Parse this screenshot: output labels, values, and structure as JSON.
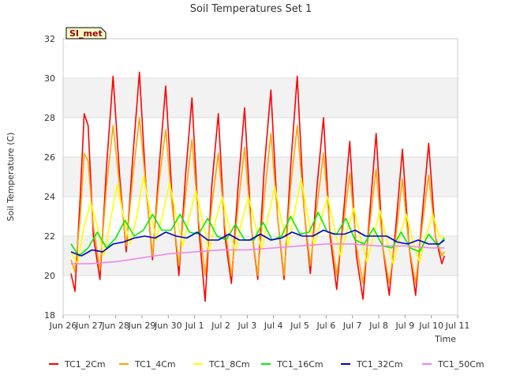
{
  "chart_data": {
    "type": "line",
    "title": "Soil Temperatures Set 1",
    "xlabel": "Time",
    "ylabel": "Soil Temperature (C)",
    "site_label": "SI_met",
    "xlim": [
      0,
      15
    ],
    "ylim": [
      18,
      32
    ],
    "y_ticks": [
      18,
      20,
      22,
      24,
      26,
      28,
      30,
      32
    ],
    "x_ticks": [
      {
        "x": 0,
        "label": "Jun 26"
      },
      {
        "x": 1,
        "label": "Jun 27"
      },
      {
        "x": 2,
        "label": "Jun 28"
      },
      {
        "x": 3,
        "label": "Jun 29"
      },
      {
        "x": 4,
        "label": "Jun 30"
      },
      {
        "x": 5,
        "label": "Jul 1"
      },
      {
        "x": 6,
        "label": "Jul 2"
      },
      {
        "x": 7,
        "label": "Jul 3"
      },
      {
        "x": 8,
        "label": "Jul 4"
      },
      {
        "x": 9,
        "label": "Jul 5"
      },
      {
        "x": 10,
        "label": "Jul 6"
      },
      {
        "x": 11,
        "label": "Jul 7"
      },
      {
        "x": 12,
        "label": "Jul 8"
      },
      {
        "x": 13,
        "label": "Jul 9"
      },
      {
        "x": 14,
        "label": "Jul 10"
      },
      {
        "x": 15,
        "label": "Jul 11"
      }
    ],
    "grid": true,
    "shaded_bands": [
      [
        20,
        22
      ],
      [
        24,
        26
      ],
      [
        28,
        30
      ]
    ],
    "legend_position": "bottom",
    "series": [
      {
        "name": "TC1_2Cm",
        "color": "#ff0000",
        "x": [
          0.3,
          0.45,
          0.65,
          0.8,
          0.95,
          1.15,
          1.4,
          1.65,
          1.9,
          2.15,
          2.4,
          2.65,
          2.9,
          3.15,
          3.4,
          3.65,
          3.9,
          4.15,
          4.4,
          4.65,
          4.9,
          5.15,
          5.4,
          5.65,
          5.9,
          6.15,
          6.4,
          6.65,
          6.9,
          7.15,
          7.4,
          7.65,
          7.9,
          8.15,
          8.4,
          8.65,
          8.9,
          9.15,
          9.4,
          9.65,
          9.9,
          10.15,
          10.4,
          10.65,
          10.9,
          11.15,
          11.4,
          11.65,
          11.9,
          12.15,
          12.4,
          12.65,
          12.9,
          13.15,
          13.4,
          13.65,
          13.9,
          14.15,
          14.4,
          14.5
        ],
        "y": [
          20.1,
          19.2,
          24.0,
          28.2,
          27.6,
          22.0,
          19.8,
          25.5,
          30.1,
          25.0,
          21.2,
          26.0,
          30.3,
          24.5,
          20.8,
          25.5,
          29.6,
          23.8,
          20.0,
          25.0,
          29.0,
          22.5,
          18.7,
          24.5,
          28.2,
          22.0,
          19.6,
          24.5,
          28.5,
          22.5,
          19.8,
          25.5,
          29.4,
          23.0,
          19.8,
          25.5,
          30.1,
          23.5,
          20.1,
          24.5,
          28.0,
          22.0,
          19.3,
          23.0,
          26.8,
          21.0,
          18.8,
          23.0,
          27.2,
          21.5,
          19.0,
          22.5,
          26.4,
          21.5,
          19.0,
          23.0,
          26.7,
          22.0,
          20.6,
          21.0
        ]
      },
      {
        "name": "TC1_4Cm",
        "color": "#ffa500",
        "x": [
          0.3,
          0.45,
          0.65,
          0.8,
          0.95,
          1.15,
          1.4,
          1.65,
          1.9,
          2.15,
          2.4,
          2.65,
          2.9,
          3.15,
          3.4,
          3.65,
          3.9,
          4.15,
          4.4,
          4.65,
          4.9,
          5.15,
          5.4,
          5.65,
          5.9,
          6.15,
          6.4,
          6.65,
          6.9,
          7.15,
          7.4,
          7.65,
          7.9,
          8.15,
          8.4,
          8.65,
          8.9,
          9.15,
          9.4,
          9.65,
          9.9,
          10.15,
          10.4,
          10.65,
          10.9,
          11.15,
          11.4,
          11.65,
          11.9,
          12.15,
          12.4,
          12.65,
          12.9,
          13.15,
          13.4,
          13.65,
          13.9,
          14.15,
          14.4,
          14.5
        ],
        "y": [
          20.8,
          20.2,
          23.0,
          26.2,
          25.8,
          22.5,
          20.3,
          24.5,
          27.6,
          24.5,
          21.5,
          25.0,
          28.0,
          24.5,
          21.0,
          24.8,
          27.4,
          23.5,
          20.5,
          24.0,
          26.9,
          22.8,
          20.0,
          23.5,
          26.2,
          22.5,
          20.0,
          23.5,
          26.5,
          22.5,
          20.0,
          24.0,
          27.2,
          23.0,
          20.0,
          24.5,
          27.6,
          23.5,
          20.5,
          23.5,
          26.2,
          22.3,
          20.0,
          22.5,
          25.2,
          21.5,
          19.6,
          22.5,
          25.4,
          21.5,
          19.6,
          22.0,
          24.9,
          21.5,
          19.6,
          22.5,
          25.1,
          22.0,
          21.0,
          21.2
        ]
      },
      {
        "name": "TC1_8Cm",
        "color": "#ffff00",
        "x": [
          0.3,
          0.55,
          0.8,
          1.05,
          1.3,
          1.55,
          1.8,
          2.05,
          2.3,
          2.55,
          2.8,
          3.05,
          3.3,
          3.55,
          3.8,
          4.05,
          4.3,
          4.55,
          4.8,
          5.05,
          5.3,
          5.55,
          5.8,
          6.05,
          6.3,
          6.55,
          6.8,
          7.05,
          7.3,
          7.55,
          7.8,
          8.05,
          8.3,
          8.55,
          8.8,
          9.05,
          9.3,
          9.55,
          9.8,
          10.05,
          10.3,
          10.55,
          10.8,
          11.05,
          11.3,
          11.55,
          11.8,
          12.05,
          12.3,
          12.55,
          12.8,
          13.05,
          13.3,
          13.55,
          13.8,
          14.05,
          14.3,
          14.5
        ],
        "y": [
          21.2,
          20.6,
          22.5,
          23.7,
          22.5,
          21.0,
          22.8,
          24.6,
          23.0,
          21.6,
          23.0,
          25.0,
          23.3,
          21.8,
          23.2,
          24.7,
          23.0,
          21.5,
          23.0,
          24.3,
          22.8,
          21.2,
          22.8,
          24.0,
          22.5,
          21.2,
          22.8,
          24.0,
          22.6,
          21.3,
          23.0,
          24.5,
          22.8,
          21.5,
          23.2,
          24.9,
          23.0,
          21.5,
          22.8,
          24.0,
          22.5,
          21.0,
          22.3,
          23.4,
          22.0,
          20.7,
          22.0,
          23.3,
          21.8,
          20.6,
          22.0,
          23.1,
          21.7,
          20.7,
          22.0,
          23.1,
          22.0,
          21.9
        ]
      },
      {
        "name": "TC1_16Cm",
        "color": "#00ee00",
        "x": [
          0.3,
          0.6,
          0.95,
          1.3,
          1.65,
          2.0,
          2.35,
          2.7,
          3.05,
          3.4,
          3.75,
          4.1,
          4.45,
          4.8,
          5.15,
          5.5,
          5.85,
          6.2,
          6.55,
          6.9,
          7.25,
          7.6,
          7.95,
          8.3,
          8.65,
          9.0,
          9.35,
          9.7,
          10.05,
          10.4,
          10.75,
          11.1,
          11.45,
          11.8,
          12.15,
          12.5,
          12.85,
          13.2,
          13.55,
          13.9,
          14.25,
          14.5
        ],
        "y": [
          21.6,
          21.0,
          21.4,
          22.2,
          21.4,
          21.9,
          22.8,
          22.0,
          22.3,
          23.1,
          22.3,
          22.3,
          23.1,
          22.2,
          22.1,
          22.9,
          22.0,
          21.8,
          22.6,
          21.8,
          21.8,
          22.7,
          21.8,
          22.0,
          23.0,
          22.1,
          22.2,
          23.2,
          22.2,
          22.1,
          22.9,
          21.8,
          21.6,
          22.4,
          21.5,
          21.4,
          22.2,
          21.4,
          21.2,
          22.1,
          21.5,
          21.9
        ]
      },
      {
        "name": "TC1_32Cm",
        "color": "#0000cc",
        "x": [
          0.3,
          0.7,
          1.1,
          1.5,
          1.9,
          2.3,
          2.7,
          3.1,
          3.5,
          3.9,
          4.3,
          4.7,
          5.1,
          5.5,
          5.9,
          6.3,
          6.7,
          7.1,
          7.5,
          7.9,
          8.3,
          8.7,
          9.1,
          9.5,
          9.9,
          10.3,
          10.7,
          11.1,
          11.5,
          11.9,
          12.3,
          12.7,
          13.1,
          13.5,
          13.9,
          14.3,
          14.5
        ],
        "y": [
          21.2,
          21.0,
          21.3,
          21.2,
          21.6,
          21.7,
          21.9,
          22.0,
          21.9,
          22.2,
          22.0,
          21.9,
          22.2,
          21.8,
          21.8,
          22.1,
          21.8,
          21.8,
          22.1,
          21.8,
          21.9,
          22.2,
          22.0,
          22.0,
          22.3,
          22.1,
          22.1,
          22.3,
          22.0,
          22.0,
          22.0,
          21.7,
          21.6,
          21.8,
          21.6,
          21.6,
          21.8
        ]
      },
      {
        "name": "TC1_50Cm",
        "color": "#ee82ee",
        "x": [
          0.3,
          1.0,
          2.0,
          3.0,
          4.0,
          5.0,
          6.0,
          7.0,
          8.0,
          9.0,
          10.0,
          11.0,
          12.0,
          13.0,
          14.0,
          14.5
        ],
        "y": [
          20.6,
          20.6,
          20.7,
          20.9,
          21.1,
          21.2,
          21.3,
          21.3,
          21.4,
          21.5,
          21.6,
          21.6,
          21.5,
          21.5,
          21.4,
          21.4
        ]
      }
    ]
  }
}
